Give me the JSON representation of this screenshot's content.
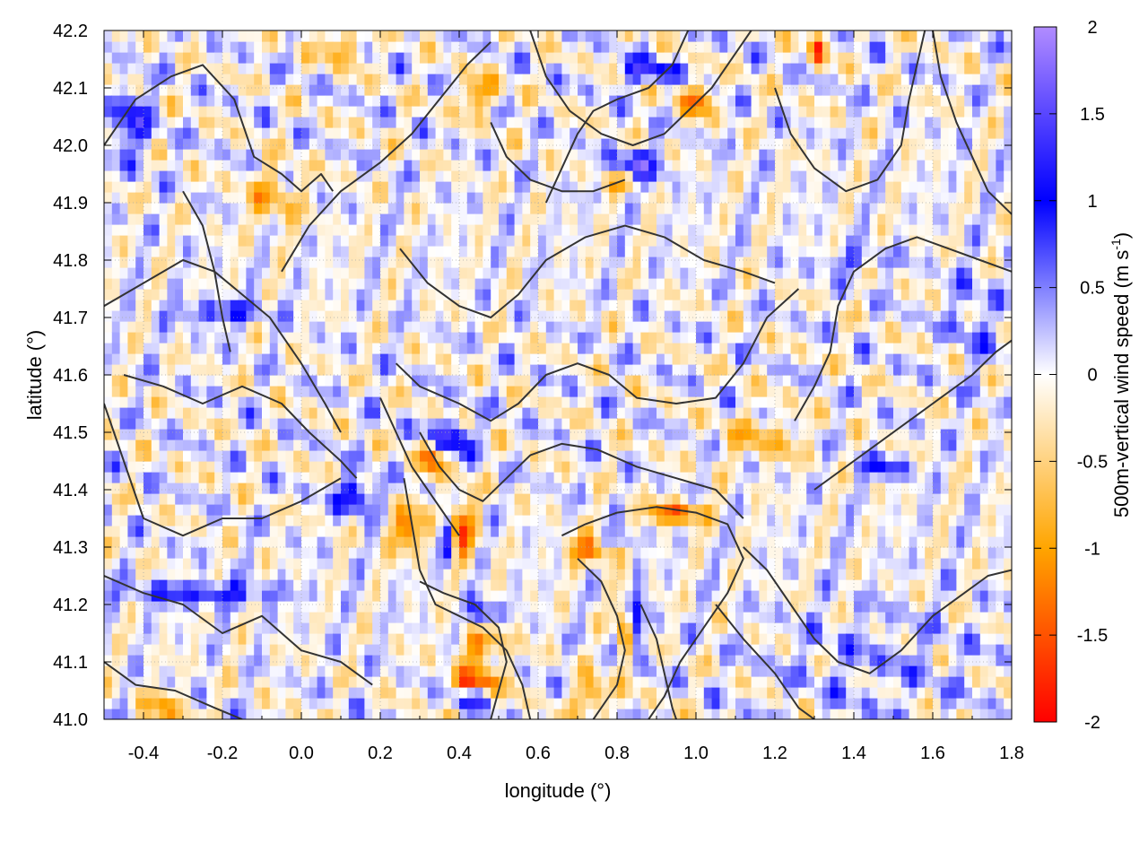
{
  "chart_data": {
    "type": "heatmap",
    "title": "",
    "xlabel": "longitude (°)",
    "ylabel": "latitude (°)",
    "xlim": [
      -0.5,
      1.8
    ],
    "ylim": [
      41.0,
      42.2
    ],
    "x_ticks": [
      -0.4,
      -0.2,
      0.0,
      0.2,
      0.4,
      0.6,
      0.8,
      1.0,
      1.2,
      1.4,
      1.6,
      1.8
    ],
    "x_tick_labels": [
      "-0.4",
      "-0.2",
      "0.0",
      "0.2",
      "0.4",
      "0.6",
      "0.8",
      "1.0",
      "1.2",
      "1.4",
      "1.6",
      "1.8"
    ],
    "y_ticks": [
      41.0,
      41.1,
      41.2,
      41.3,
      41.4,
      41.5,
      41.6,
      41.7,
      41.8,
      41.9,
      42.0,
      42.1,
      42.2
    ],
    "y_tick_labels": [
      "41.0",
      "41.1",
      "41.2",
      "41.3",
      "41.4",
      "41.5",
      "41.6",
      "41.7",
      "41.8",
      "41.9",
      "42.0",
      "42.1",
      "42.2"
    ],
    "grid": true,
    "colorbar": {
      "label_main": "500m-vertical wind speed (m s",
      "label_sup": "-1",
      "label_end": ")",
      "range": [
        -2,
        2
      ],
      "ticks": [
        -2,
        -1.5,
        -1,
        -0.5,
        0,
        0.5,
        1,
        1.5,
        2
      ],
      "tick_labels": [
        "-2",
        "-1.5",
        "-1",
        "-0.5",
        "0",
        "0.5",
        "1",
        "1.5",
        "2"
      ],
      "colors": {
        "min": "#ff0000",
        "low": "#ffa500",
        "zero": "#ffffff",
        "high": "#0000ff",
        "max": "#b18cff"
      }
    },
    "field_features": [
      {
        "lon": 0.36,
        "lat": 41.49,
        "value": 1.9,
        "sx": 0.06,
        "sy": 0.03
      },
      {
        "lon": 0.33,
        "lat": 41.47,
        "value": -1.7,
        "sx": 0.04,
        "sy": 0.04
      },
      {
        "lon": 0.4,
        "lat": 41.33,
        "value": -1.4,
        "sx": 0.04,
        "sy": 0.06
      },
      {
        "lon": 0.37,
        "lat": 41.31,
        "value": 1.6,
        "sx": 0.02,
        "sy": 0.05
      },
      {
        "lon": 0.27,
        "lat": 41.33,
        "value": -1.2,
        "sx": 0.05,
        "sy": 0.04
      },
      {
        "lon": 0.14,
        "lat": 41.39,
        "value": 1.3,
        "sx": 0.05,
        "sy": 0.03
      },
      {
        "lon": 0.46,
        "lat": 41.18,
        "value": 1.7,
        "sx": 0.04,
        "sy": 0.03
      },
      {
        "lon": 0.46,
        "lat": 41.14,
        "value": -1.2,
        "sx": 0.06,
        "sy": 0.05
      },
      {
        "lon": 0.44,
        "lat": 41.06,
        "value": -1.7,
        "sx": 0.06,
        "sy": 0.025
      },
      {
        "lon": 0.43,
        "lat": 41.04,
        "value": 1.5,
        "sx": 0.05,
        "sy": 0.02
      },
      {
        "lon": 0.75,
        "lat": 41.3,
        "value": -1.8,
        "sx": 0.07,
        "sy": 0.025
      },
      {
        "lon": 0.79,
        "lat": 41.31,
        "value": 1.4,
        "sx": 0.06,
        "sy": 0.02
      },
      {
        "lon": 0.95,
        "lat": 41.36,
        "value": -1.4,
        "sx": 0.08,
        "sy": 0.02
      },
      {
        "lon": 0.82,
        "lat": 41.15,
        "value": -1.1,
        "sx": 0.02,
        "sy": 0.07
      },
      {
        "lon": 0.85,
        "lat": 41.17,
        "value": 1.1,
        "sx": 0.02,
        "sy": 0.07
      },
      {
        "lon": 0.74,
        "lat": 41.04,
        "value": -1.3,
        "sx": 0.04,
        "sy": 0.03
      },
      {
        "lon": 0.85,
        "lat": 41.96,
        "value": 1.5,
        "sx": 0.06,
        "sy": 0.03
      },
      {
        "lon": 0.82,
        "lat": 41.94,
        "value": -1.3,
        "sx": 0.05,
        "sy": 0.02
      },
      {
        "lon": 1.0,
        "lat": 42.08,
        "value": -1.3,
        "sx": 0.04,
        "sy": 0.03
      },
      {
        "lon": 0.88,
        "lat": 42.13,
        "value": 1.2,
        "sx": 0.07,
        "sy": 0.02
      },
      {
        "lon": 0.45,
        "lat": 42.09,
        "value": -1.1,
        "sx": 0.05,
        "sy": 0.03
      },
      {
        "lon": 0.1,
        "lat": 42.17,
        "value": -1.0,
        "sx": 0.05,
        "sy": 0.03
      },
      {
        "lon": 1.31,
        "lat": 42.17,
        "value": -1.5,
        "sx": 0.02,
        "sy": 0.03
      },
      {
        "lon": -0.43,
        "lat": 42.04,
        "value": 1.0,
        "sx": 0.05,
        "sy": 0.06
      },
      {
        "lon": -0.07,
        "lat": 41.91,
        "value": -0.8,
        "sx": 0.07,
        "sy": 0.05
      },
      {
        "lon": -0.2,
        "lat": 41.71,
        "value": 0.9,
        "sx": 0.12,
        "sy": 0.02
      },
      {
        "lon": -0.25,
        "lat": 41.22,
        "value": 1.0,
        "sx": 0.2,
        "sy": 0.02
      },
      {
        "lon": 1.17,
        "lat": 41.49,
        "value": -0.7,
        "sx": 0.1,
        "sy": 0.04
      },
      {
        "lon": 1.48,
        "lat": 41.44,
        "value": 0.8,
        "sx": 0.07,
        "sy": 0.02
      },
      {
        "lon": 1.4,
        "lat": 41.8,
        "value": 0.6,
        "sx": 0.1,
        "sy": 0.02
      },
      {
        "lon": 1.45,
        "lat": 41.1,
        "value": 0.3,
        "sx": 0.25,
        "sy": 0.1
      },
      {
        "lon": -0.35,
        "lat": 41.02,
        "value": -0.8,
        "sx": 0.06,
        "sy": 0.03
      },
      {
        "lon": 1.7,
        "lat": 41.7,
        "value": 0.5,
        "sx": 0.06,
        "sy": 0.08
      }
    ],
    "contours": [
      [
        [
          -0.5,
          42.0
        ],
        [
          -0.42,
          42.08
        ],
        [
          -0.33,
          42.12
        ],
        [
          -0.25,
          42.14
        ],
        [
          -0.17,
          42.08
        ],
        [
          -0.12,
          41.98
        ],
        [
          -0.05,
          41.95
        ],
        [
          0.0,
          41.92
        ],
        [
          0.05,
          41.95
        ],
        [
          0.08,
          41.92
        ]
      ],
      [
        [
          -0.5,
          41.72
        ],
        [
          -0.4,
          41.76
        ],
        [
          -0.3,
          41.8
        ],
        [
          -0.22,
          41.78
        ],
        [
          -0.15,
          41.74
        ],
        [
          -0.08,
          41.7
        ],
        [
          0.0,
          41.62
        ],
        [
          0.06,
          41.55
        ],
        [
          0.1,
          41.5
        ]
      ],
      [
        [
          -0.45,
          41.6
        ],
        [
          -0.35,
          41.58
        ],
        [
          -0.25,
          41.55
        ],
        [
          -0.15,
          41.58
        ],
        [
          -0.05,
          41.55
        ],
        [
          0.02,
          41.5
        ],
        [
          0.1,
          41.45
        ],
        [
          0.14,
          41.42
        ]
      ],
      [
        [
          -0.5,
          41.55
        ],
        [
          -0.45,
          41.45
        ],
        [
          -0.4,
          41.35
        ],
        [
          -0.3,
          41.32
        ],
        [
          -0.2,
          41.35
        ],
        [
          -0.1,
          41.35
        ],
        [
          0.0,
          41.38
        ],
        [
          0.1,
          41.42
        ]
      ],
      [
        [
          -0.5,
          41.25
        ],
        [
          -0.4,
          41.22
        ],
        [
          -0.3,
          41.2
        ],
        [
          -0.2,
          41.15
        ],
        [
          -0.1,
          41.18
        ],
        [
          0.0,
          41.12
        ],
        [
          0.1,
          41.1
        ],
        [
          0.18,
          41.06
        ]
      ],
      [
        [
          -0.5,
          41.1
        ],
        [
          -0.42,
          41.06
        ],
        [
          -0.32,
          41.05
        ],
        [
          -0.22,
          41.02
        ],
        [
          -0.15,
          41.0
        ]
      ],
      [
        [
          -0.05,
          41.78
        ],
        [
          0.02,
          41.86
        ],
        [
          0.1,
          41.92
        ],
        [
          0.2,
          41.97
        ],
        [
          0.28,
          42.02
        ],
        [
          0.35,
          42.08
        ],
        [
          0.42,
          42.14
        ],
        [
          0.48,
          42.18
        ]
      ],
      [
        [
          0.25,
          41.82
        ],
        [
          0.32,
          41.76
        ],
        [
          0.4,
          41.72
        ],
        [
          0.48,
          41.7
        ],
        [
          0.55,
          41.74
        ],
        [
          0.62,
          41.8
        ],
        [
          0.72,
          41.84
        ],
        [
          0.82,
          41.86
        ],
        [
          0.92,
          41.84
        ],
        [
          1.02,
          41.8
        ],
        [
          1.12,
          41.78
        ],
        [
          1.2,
          41.76
        ]
      ],
      [
        [
          0.24,
          41.62
        ],
        [
          0.3,
          41.58
        ],
        [
          0.4,
          41.55
        ],
        [
          0.48,
          41.52
        ],
        [
          0.55,
          41.55
        ],
        [
          0.62,
          41.6
        ],
        [
          0.7,
          41.62
        ],
        [
          0.78,
          41.6
        ],
        [
          0.85,
          41.56
        ],
        [
          0.95,
          41.55
        ],
        [
          1.05,
          41.56
        ],
        [
          1.12,
          41.62
        ],
        [
          1.18,
          41.7
        ],
        [
          1.26,
          41.75
        ]
      ],
      [
        [
          0.3,
          41.5
        ],
        [
          0.35,
          41.44
        ],
        [
          0.4,
          41.4
        ],
        [
          0.46,
          41.38
        ],
        [
          0.52,
          41.42
        ],
        [
          0.58,
          41.46
        ],
        [
          0.66,
          41.48
        ],
        [
          0.75,
          41.47
        ],
        [
          0.85,
          41.44
        ],
        [
          0.95,
          41.42
        ],
        [
          1.05,
          41.4
        ],
        [
          1.12,
          41.35
        ]
      ],
      [
        [
          0.26,
          41.42
        ],
        [
          0.28,
          41.34
        ],
        [
          0.3,
          41.26
        ],
        [
          0.34,
          41.2
        ],
        [
          0.4,
          41.18
        ],
        [
          0.46,
          41.16
        ],
        [
          0.52,
          41.12
        ],
        [
          0.56,
          41.06
        ],
        [
          0.58,
          41.0
        ]
      ],
      [
        [
          0.3,
          41.24
        ],
        [
          0.36,
          41.22
        ],
        [
          0.44,
          41.2
        ],
        [
          0.5,
          41.16
        ],
        [
          0.52,
          41.1
        ],
        [
          0.5,
          41.05
        ],
        [
          0.48,
          41.0
        ]
      ],
      [
        [
          0.66,
          41.32
        ],
        [
          0.72,
          41.34
        ],
        [
          0.8,
          41.36
        ],
        [
          0.9,
          41.37
        ],
        [
          1.0,
          41.36
        ],
        [
          1.08,
          41.34
        ],
        [
          1.12,
          41.28
        ],
        [
          1.08,
          41.22
        ],
        [
          1.02,
          41.16
        ],
        [
          0.96,
          41.1
        ],
        [
          0.92,
          41.04
        ],
        [
          0.88,
          41.0
        ]
      ],
      [
        [
          0.7,
          41.28
        ],
        [
          0.76,
          41.24
        ],
        [
          0.8,
          41.18
        ],
        [
          0.82,
          41.12
        ],
        [
          0.8,
          41.06
        ],
        [
          0.76,
          41.02
        ],
        [
          0.74,
          41.0
        ]
      ],
      [
        [
          0.86,
          41.2
        ],
        [
          0.9,
          41.14
        ],
        [
          0.92,
          41.08
        ],
        [
          0.94,
          41.02
        ],
        [
          0.95,
          41.0
        ]
      ],
      [
        [
          1.12,
          41.3
        ],
        [
          1.18,
          41.26
        ],
        [
          1.24,
          41.2
        ],
        [
          1.3,
          41.14
        ],
        [
          1.36,
          41.1
        ],
        [
          1.44,
          41.08
        ],
        [
          1.52,
          41.12
        ],
        [
          1.6,
          41.18
        ],
        [
          1.68,
          41.22
        ],
        [
          1.74,
          41.25
        ],
        [
          1.8,
          41.26
        ]
      ],
      [
        [
          1.05,
          41.2
        ],
        [
          1.12,
          41.14
        ],
        [
          1.2,
          41.08
        ],
        [
          1.26,
          41.02
        ],
        [
          1.3,
          41.0
        ]
      ],
      [
        [
          1.3,
          41.4
        ],
        [
          1.38,
          41.44
        ],
        [
          1.46,
          41.48
        ],
        [
          1.54,
          41.52
        ],
        [
          1.62,
          41.56
        ],
        [
          1.7,
          41.6
        ],
        [
          1.76,
          41.64
        ],
        [
          1.8,
          41.66
        ]
      ],
      [
        [
          1.25,
          41.52
        ],
        [
          1.3,
          41.58
        ],
        [
          1.34,
          41.64
        ],
        [
          1.36,
          41.72
        ],
        [
          1.4,
          41.78
        ],
        [
          1.48,
          41.82
        ],
        [
          1.56,
          41.84
        ],
        [
          1.64,
          41.82
        ],
        [
          1.72,
          41.8
        ],
        [
          1.8,
          41.78
        ]
      ],
      [
        [
          1.6,
          42.2
        ],
        [
          1.62,
          42.12
        ],
        [
          1.66,
          42.04
        ],
        [
          1.7,
          41.98
        ],
        [
          1.74,
          41.92
        ],
        [
          1.8,
          41.88
        ]
      ],
      [
        [
          0.58,
          42.2
        ],
        [
          0.62,
          42.12
        ],
        [
          0.68,
          42.06
        ],
        [
          0.76,
          42.02
        ],
        [
          0.84,
          42.0
        ],
        [
          0.92,
          42.02
        ],
        [
          0.98,
          42.06
        ],
        [
          1.04,
          42.1
        ],
        [
          1.1,
          42.16
        ],
        [
          1.14,
          42.2
        ]
      ],
      [
        [
          0.62,
          41.9
        ],
        [
          0.66,
          41.96
        ],
        [
          0.7,
          42.02
        ],
        [
          0.74,
          42.06
        ],
        [
          0.8,
          42.08
        ],
        [
          0.88,
          42.1
        ],
        [
          0.94,
          42.14
        ],
        [
          0.98,
          42.2
        ]
      ],
      [
        [
          1.2,
          42.1
        ],
        [
          1.24,
          42.02
        ],
        [
          1.3,
          41.96
        ],
        [
          1.38,
          41.92
        ],
        [
          1.46,
          41.94
        ],
        [
          1.52,
          42.0
        ],
        [
          1.54,
          42.08
        ],
        [
          1.56,
          42.14
        ],
        [
          1.58,
          42.2
        ]
      ],
      [
        [
          0.2,
          41.56
        ],
        [
          0.24,
          41.5
        ],
        [
          0.28,
          41.44
        ],
        [
          0.32,
          41.4
        ],
        [
          0.36,
          41.36
        ],
        [
          0.4,
          41.32
        ]
      ],
      [
        [
          -0.3,
          41.92
        ],
        [
          -0.25,
          41.86
        ],
        [
          -0.22,
          41.78
        ],
        [
          -0.2,
          41.7
        ],
        [
          -0.18,
          41.64
        ]
      ],
      [
        [
          0.48,
          42.04
        ],
        [
          0.52,
          41.98
        ],
        [
          0.58,
          41.94
        ],
        [
          0.66,
          41.92
        ],
        [
          0.74,
          41.92
        ],
        [
          0.82,
          41.94
        ]
      ]
    ]
  }
}
